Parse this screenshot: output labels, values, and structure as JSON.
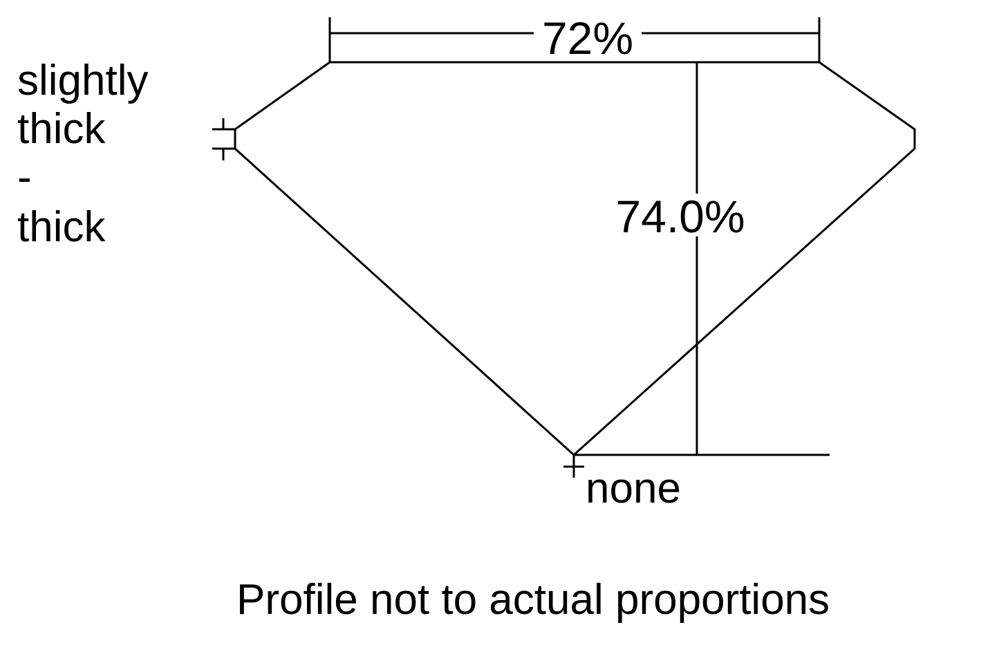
{
  "table_percent": "72%",
  "depth_percent": "74.0%",
  "girdle_label": [
    "slightly",
    "thick",
    "-",
    "thick"
  ],
  "culet_label": "none",
  "footnote": "Profile not to actual proportions",
  "line_color": "#000000"
}
